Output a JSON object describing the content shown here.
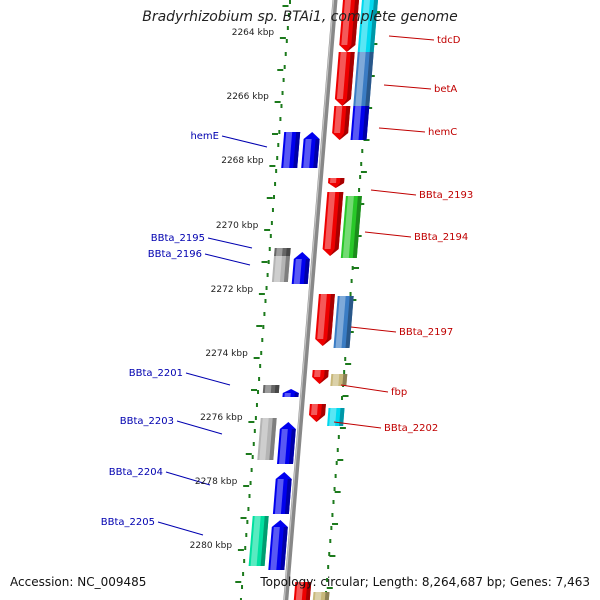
{
  "title": "Bradyrhizobium sp. BTAi1, complete genome",
  "accession": "Accession: NC_009485",
  "summary": "Topology: circular; Length: 8,264,687 bp; Genes: 7,463",
  "colors": {
    "backbone": "#888888",
    "tick": "#1c7a1c",
    "forward_label": "#0000b0",
    "reverse_label": "#c00000",
    "tick_text": "#222222",
    "red": "#ee0000",
    "blue": "#0000ee",
    "steelblue": "#3a7cc4",
    "cyan": "#00d8ee",
    "green": "#28c828",
    "gray": "#b4b4b4",
    "darkgray": "#666666",
    "teal": "#00e0a0",
    "olive": "#c8b87a"
  },
  "coordinate_labels": [
    "2264 kbp",
    "2266 kbp",
    "2268 kbp",
    "2270 kbp",
    "2272 kbp",
    "2274 kbp",
    "2276 kbp",
    "2278 kbp",
    "2280 kbp"
  ],
  "gene_labels_forward": [
    "hemE",
    "BBta_2195",
    "BBta_2196",
    "BBta_2201",
    "BBta_2203",
    "BBta_2204",
    "BBta_2205"
  ],
  "gene_labels_reverse": [
    "tdcD",
    "betA",
    "hemC",
    "BBta_2193",
    "BBta_2194",
    "BBta_2197",
    "fbp",
    "BBta_2202"
  ]
}
